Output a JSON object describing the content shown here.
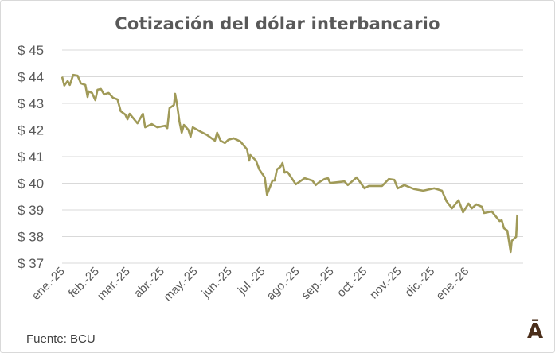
{
  "chart_data": {
    "type": "line",
    "title": "Cotización del dólar interbancario",
    "source": "Fuente: BCU",
    "logo_text": "Ā",
    "ylim": [
      37,
      45
    ],
    "yticks": [
      37,
      38,
      39,
      40,
      41,
      42,
      43,
      44,
      45
    ],
    "ytick_prefix": "$ ",
    "xlim": [
      "2025-01-01",
      "2026-02-17"
    ],
    "xticks": [
      {
        "date": "2025-01-01",
        "label": "ene.-25"
      },
      {
        "date": "2025-02-01",
        "label": "feb.-25"
      },
      {
        "date": "2025-03-01",
        "label": "mar.-25"
      },
      {
        "date": "2025-04-01",
        "label": "abr.-25"
      },
      {
        "date": "2025-05-01",
        "label": "may.-25"
      },
      {
        "date": "2025-06-01",
        "label": "jun.-25"
      },
      {
        "date": "2025-07-01",
        "label": "jul.-25"
      },
      {
        "date": "2025-08-01",
        "label": "ago.-25"
      },
      {
        "date": "2025-09-01",
        "label": "sep.-25"
      },
      {
        "date": "2025-10-01",
        "label": "oct.-25"
      },
      {
        "date": "2025-11-01",
        "label": "nov.-25"
      },
      {
        "date": "2025-12-01",
        "label": "dic.-25"
      },
      {
        "date": "2026-01-01",
        "label": "ene.-26"
      }
    ],
    "grid": "horizontal",
    "line_color": "#a09a58",
    "points": [
      [
        "2025-01-01",
        44.0
      ],
      [
        "2025-01-03",
        43.67
      ],
      [
        "2025-01-06",
        43.84
      ],
      [
        "2025-01-08",
        43.69
      ],
      [
        "2025-01-11",
        44.07
      ],
      [
        "2025-01-15",
        44.04
      ],
      [
        "2025-01-18",
        43.75
      ],
      [
        "2025-01-22",
        43.69
      ],
      [
        "2025-01-24",
        43.24
      ],
      [
        "2025-01-25",
        43.45
      ],
      [
        "2025-01-28",
        43.39
      ],
      [
        "2025-01-31",
        43.12
      ],
      [
        "2025-02-02",
        43.51
      ],
      [
        "2025-02-05",
        43.54
      ],
      [
        "2025-02-08",
        43.33
      ],
      [
        "2025-02-12",
        43.39
      ],
      [
        "2025-02-16",
        43.21
      ],
      [
        "2025-02-20",
        43.15
      ],
      [
        "2025-02-23",
        42.7
      ],
      [
        "2025-02-27",
        42.58
      ],
      [
        "2025-03-01",
        42.4
      ],
      [
        "2025-03-03",
        42.61
      ],
      [
        "2025-03-10",
        42.25
      ],
      [
        "2025-03-15",
        42.61
      ],
      [
        "2025-03-17",
        42.1
      ],
      [
        "2025-03-23",
        42.22
      ],
      [
        "2025-03-28",
        42.1
      ],
      [
        "2025-04-04",
        42.16
      ],
      [
        "2025-04-06",
        42.07
      ],
      [
        "2025-04-08",
        42.82
      ],
      [
        "2025-04-12",
        42.94
      ],
      [
        "2025-04-13",
        43.36
      ],
      [
        "2025-04-15",
        42.91
      ],
      [
        "2025-04-17",
        42.31
      ],
      [
        "2025-04-19",
        41.9
      ],
      [
        "2025-04-21",
        42.19
      ],
      [
        "2025-04-25",
        42.01
      ],
      [
        "2025-04-27",
        41.75
      ],
      [
        "2025-04-29",
        42.1
      ],
      [
        "2025-05-05",
        41.96
      ],
      [
        "2025-05-12",
        41.81
      ],
      [
        "2025-05-19",
        41.6
      ],
      [
        "2025-05-21",
        41.9
      ],
      [
        "2025-05-24",
        41.6
      ],
      [
        "2025-05-28",
        41.51
      ],
      [
        "2025-05-31",
        41.63
      ],
      [
        "2025-06-05",
        41.69
      ],
      [
        "2025-06-11",
        41.57
      ],
      [
        "2025-06-17",
        41.27
      ],
      [
        "2025-06-19",
        40.85
      ],
      [
        "2025-06-20",
        41.06
      ],
      [
        "2025-06-25",
        40.85
      ],
      [
        "2025-06-28",
        40.52
      ],
      [
        "2025-07-03",
        40.22
      ],
      [
        "2025-07-05",
        39.57
      ],
      [
        "2025-07-10",
        40.1
      ],
      [
        "2025-07-12",
        40.1
      ],
      [
        "2025-07-14",
        40.52
      ],
      [
        "2025-07-17",
        40.61
      ],
      [
        "2025-07-19",
        40.76
      ],
      [
        "2025-07-21",
        40.4
      ],
      [
        "2025-07-23",
        40.43
      ],
      [
        "2025-07-24",
        40.4
      ],
      [
        "2025-07-31",
        39.96
      ],
      [
        "2025-08-08",
        40.19
      ],
      [
        "2025-08-15",
        40.1
      ],
      [
        "2025-08-18",
        39.93
      ],
      [
        "2025-08-21",
        40.04
      ],
      [
        "2025-08-26",
        40.16
      ],
      [
        "2025-08-29",
        40.19
      ],
      [
        "2025-08-31",
        40.01
      ],
      [
        "2025-09-13",
        40.07
      ],
      [
        "2025-09-16",
        39.93
      ],
      [
        "2025-09-24",
        40.22
      ],
      [
        "2025-10-01",
        39.81
      ],
      [
        "2025-10-05",
        39.9
      ],
      [
        "2025-10-17",
        39.9
      ],
      [
        "2025-10-23",
        40.16
      ],
      [
        "2025-10-28",
        40.13
      ],
      [
        "2025-10-31",
        39.81
      ],
      [
        "2025-11-06",
        39.93
      ],
      [
        "2025-11-15",
        39.78
      ],
      [
        "2025-11-23",
        39.72
      ],
      [
        "2025-12-03",
        39.81
      ],
      [
        "2025-12-10",
        39.72
      ],
      [
        "2025-12-14",
        39.33
      ],
      [
        "2025-12-19",
        39.06
      ],
      [
        "2025-12-25",
        39.36
      ],
      [
        "2025-12-29",
        38.91
      ],
      [
        "2026-01-03",
        39.24
      ],
      [
        "2026-01-06",
        39.06
      ],
      [
        "2026-01-10",
        39.21
      ],
      [
        "2026-01-15",
        39.12
      ],
      [
        "2026-01-17",
        38.88
      ],
      [
        "2026-01-24",
        38.94
      ],
      [
        "2026-01-31",
        38.58
      ],
      [
        "2026-02-02",
        38.61
      ],
      [
        "2026-02-04",
        38.31
      ],
      [
        "2026-02-07",
        38.22
      ],
      [
        "2026-02-10",
        37.42
      ],
      [
        "2026-02-11",
        37.84
      ],
      [
        "2026-02-15",
        37.99
      ],
      [
        "2026-02-16",
        38.82
      ]
    ]
  }
}
